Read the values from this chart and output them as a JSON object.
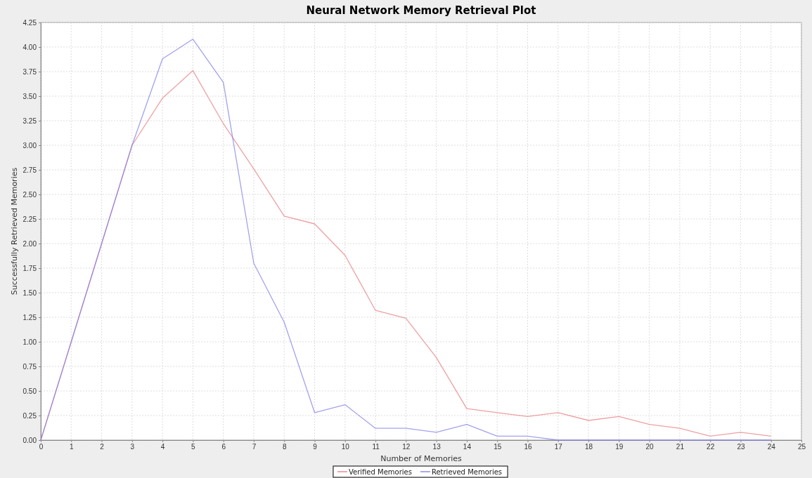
{
  "chart_data": {
    "type": "line",
    "title": "Neural Network Memory Retrieval Plot",
    "xlabel": "Number of Memories",
    "ylabel": "Successfully Retrieved Memories",
    "x": [
      0,
      1,
      2,
      3,
      4,
      5,
      6,
      7,
      8,
      9,
      10,
      11,
      12,
      13,
      14,
      15,
      16,
      17,
      18,
      19,
      20,
      21,
      22,
      23,
      24
    ],
    "series": [
      {
        "name": "Verified Memories",
        "color": "#e8787a",
        "values": [
          0,
          1,
          2,
          3,
          3.48,
          3.76,
          3.22,
          2.76,
          2.28,
          2.2,
          1.88,
          1.32,
          1.24,
          0.84,
          0.32,
          0.28,
          0.24,
          0.28,
          0.2,
          0.24,
          0.16,
          0.12,
          0.04,
          0.08,
          0.04
        ]
      },
      {
        "name": "Retrieved Memories",
        "color": "#7b7be8",
        "values": [
          0,
          1,
          2,
          3,
          3.88,
          4.08,
          3.64,
          1.8,
          1.2,
          0.28,
          0.36,
          0.12,
          0.12,
          0.08,
          0.16,
          0.04,
          0.04,
          0,
          0,
          0,
          0,
          0,
          0,
          0,
          0
        ]
      }
    ],
    "xlim": [
      0,
      25
    ],
    "xticks": [
      0,
      1,
      2,
      3,
      4,
      5,
      6,
      7,
      8,
      9,
      10,
      11,
      12,
      13,
      14,
      15,
      16,
      17,
      18,
      19,
      20,
      21,
      22,
      23,
      24,
      25
    ],
    "ylim": [
      0,
      4.25
    ],
    "yticks": [
      {
        "value": 0,
        "label": "0.00"
      },
      {
        "value": 0.25,
        "label": "0.25"
      },
      {
        "value": 0.5,
        "label": "0.50"
      },
      {
        "value": 0.75,
        "label": "0.75"
      },
      {
        "value": 1,
        "label": "1.00"
      },
      {
        "value": 1.25,
        "label": "1.25"
      },
      {
        "value": 1.5,
        "label": "1.50"
      },
      {
        "value": 1.75,
        "label": "1.75"
      },
      {
        "value": 2,
        "label": "2.00"
      },
      {
        "value": 2.25,
        "label": "2.25"
      },
      {
        "value": 2.5,
        "label": "2.50"
      },
      {
        "value": 2.75,
        "label": "2.75"
      },
      {
        "value": 3,
        "label": "3.00"
      },
      {
        "value": 3.25,
        "label": "3.25"
      },
      {
        "value": 3.5,
        "label": "3.50"
      },
      {
        "value": 3.75,
        "label": "3.75"
      },
      {
        "value": 4,
        "label": "4.00"
      },
      {
        "value": 4.25,
        "label": "4.25"
      }
    ],
    "grid": true,
    "legend": "bottom",
    "marker": "none",
    "line_style": "solid"
  }
}
